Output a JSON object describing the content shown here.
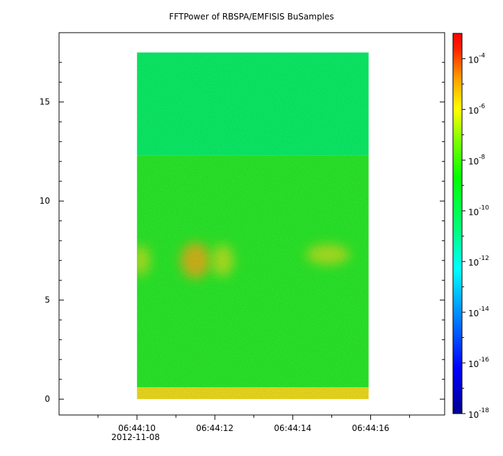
{
  "chart_data": {
    "type": "heatmap",
    "title": "FFTPower of RBSPA/EMFISIS  BuSamples",
    "xlabel": "",
    "ylabel": "",
    "x_ticks": [
      {
        "label": "06:44:10",
        "sublabel": "2012-11-08",
        "t": 10
      },
      {
        "label": "06:44:12",
        "sublabel": "",
        "t": 12
      },
      {
        "label": "06:44:14",
        "sublabel": "",
        "t": 14
      },
      {
        "label": "06:44:16",
        "sublabel": "",
        "t": 16
      }
    ],
    "y_ticks": [
      0,
      5,
      10,
      15
    ],
    "ylim": [
      -0.8,
      18.5
    ],
    "xlim_seconds": [
      8.0,
      17.9
    ],
    "data_extent": {
      "t_start": 10.0,
      "t_end": 15.95,
      "y_min": 0.0,
      "y_max": 17.5
    },
    "colorbar": {
      "scale": "log",
      "range_exponent": [
        -18,
        -3
      ],
      "ticks": [
        {
          "base": "10",
          "exp": "-4",
          "value_exp": -4
        },
        {
          "base": "10",
          "exp": "-6",
          "value_exp": -6
        },
        {
          "base": "10",
          "exp": "-8",
          "value_exp": -8
        },
        {
          "base": "10",
          "exp": "-10",
          "value_exp": -10
        },
        {
          "base": "10",
          "exp": "-12",
          "value_exp": -12
        },
        {
          "base": "10",
          "exp": "-14",
          "value_exp": -14
        },
        {
          "base": "10",
          "exp": "-16",
          "value_exp": -16
        },
        {
          "base": "10",
          "exp": "-18",
          "value_exp": -18
        }
      ]
    },
    "bands": [
      {
        "y_from": 12.3,
        "y_to": 17.5,
        "level_exp": -11.0
      },
      {
        "y_from": 0.6,
        "y_to": 12.3,
        "level_exp": -10.0
      },
      {
        "y_from": 0.0,
        "y_to": 0.6,
        "level_exp": -8.5
      }
    ],
    "features": [
      {
        "t": 11.5,
        "y": 7.0,
        "level_exp": -8.0,
        "t_width": 0.55,
        "y_width": 1.4
      },
      {
        "t": 12.2,
        "y": 7.0,
        "level_exp": -8.8,
        "t_width": 0.35,
        "y_width": 1.2
      },
      {
        "t": 10.1,
        "y": 7.0,
        "level_exp": -9.0,
        "t_width": 0.25,
        "y_width": 1.1
      },
      {
        "t": 14.9,
        "y": 7.3,
        "level_exp": -9.0,
        "t_width": 0.9,
        "y_width": 0.6
      }
    ]
  }
}
